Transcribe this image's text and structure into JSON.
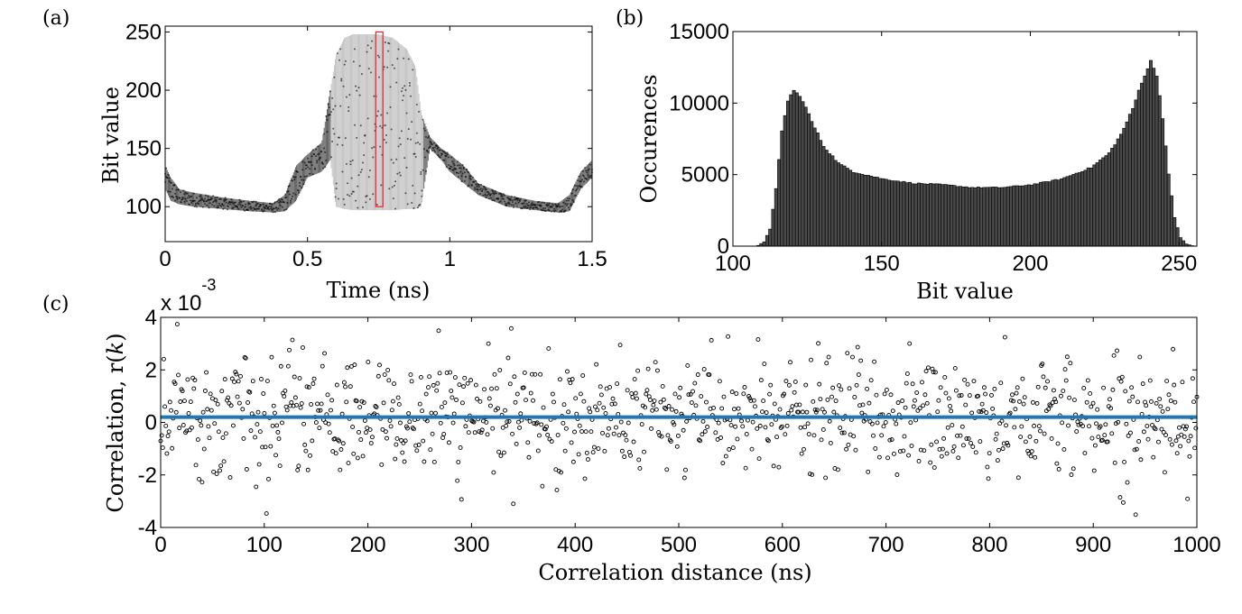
{
  "chart_data": [
    {
      "id": "a",
      "type": "scatter",
      "panel_label": "(a)",
      "xlabel": "Time (ns)",
      "ylabel": "Bit value",
      "xlim": [
        0,
        1.5
      ],
      "ylim": [
        70,
        255
      ],
      "xticks": [
        0,
        0.5,
        1,
        1.5
      ],
      "xtick_labels": [
        "0",
        "0.5",
        "1",
        "1.5"
      ],
      "yticks": [
        100,
        150,
        200,
        250
      ],
      "ytick_labels": [
        "100",
        "150",
        "200",
        "250"
      ],
      "envelope": {
        "time": [
          0,
          0.02,
          0.05,
          0.1,
          0.2,
          0.3,
          0.38,
          0.42,
          0.46,
          0.5,
          0.55,
          0.58,
          0.6,
          0.63,
          0.66,
          0.7,
          0.75,
          0.8,
          0.85,
          0.88,
          0.9,
          0.93,
          0.97,
          1.0,
          1.05,
          1.1,
          1.2,
          1.3,
          1.38,
          1.42,
          1.46,
          1.5
        ],
        "min": [
          115,
          105,
          102,
          100,
          98,
          96,
          95,
          96,
          105,
          125,
          130,
          140,
          100,
          98,
          97,
          97,
          97,
          97,
          98,
          98,
          100,
          150,
          140,
          130,
          120,
          110,
          100,
          97,
          95,
          96,
          115,
          125
        ],
        "max": [
          135,
          125,
          115,
          112,
          108,
          105,
          103,
          110,
          135,
          145,
          155,
          200,
          230,
          245,
          248,
          248,
          248,
          245,
          235,
          220,
          180,
          160,
          150,
          145,
          135,
          120,
          110,
          105,
          103,
          110,
          130,
          140
        ]
      },
      "highlight": {
        "x_range": [
          0.74,
          0.765
        ],
        "y_range": [
          100,
          250
        ],
        "color": "#e8262a"
      },
      "point_color": "#000000"
    },
    {
      "id": "b",
      "type": "bar",
      "panel_label": "(b)",
      "xlabel": "Bit value",
      "ylabel": "Occurences",
      "xlim": [
        100,
        256
      ],
      "ylim": [
        0,
        15000
      ],
      "xticks": [
        100,
        150,
        200,
        250
      ],
      "xtick_labels": [
        "100",
        "150",
        "200",
        "250"
      ],
      "yticks": [
        0,
        5000,
        10000,
        15000
      ],
      "ytick_labels": [
        "0",
        "5000",
        "10000",
        "15000"
      ],
      "bin_start": 108,
      "bin_width": 1,
      "shape_points": [
        [
          108,
          50
        ],
        [
          110,
          300
        ],
        [
          112,
          1200
        ],
        [
          114,
          4000
        ],
        [
          116,
          8000
        ],
        [
          118,
          10200
        ],
        [
          120,
          10900
        ],
        [
          123,
          10200
        ],
        [
          126,
          8700
        ],
        [
          130,
          7000
        ],
        [
          135,
          5800
        ],
        [
          140,
          5200
        ],
        [
          150,
          4700
        ],
        [
          160,
          4400
        ],
        [
          170,
          4300
        ],
        [
          180,
          4100
        ],
        [
          190,
          4100
        ],
        [
          200,
          4300
        ],
        [
          210,
          4700
        ],
        [
          220,
          5500
        ],
        [
          226,
          6500
        ],
        [
          230,
          7800
        ],
        [
          234,
          9600
        ],
        [
          237,
          11500
        ],
        [
          240,
          12900
        ],
        [
          242,
          12000
        ],
        [
          244,
          9000
        ],
        [
          246,
          5000
        ],
        [
          248,
          2000
        ],
        [
          250,
          600
        ],
        [
          252,
          150
        ],
        [
          254,
          30
        ]
      ],
      "bar_color": "#4a4a4a",
      "edge_color": "#000000"
    },
    {
      "id": "c",
      "type": "scatter",
      "panel_label": "(c)",
      "xlabel": "Correlation distance (ns)",
      "ylabel_prefix": "Correlation, r(",
      "ylabel_var": "k",
      "ylabel_suffix": ")",
      "exponent_prefix": "x 10",
      "exponent_power": "-3",
      "xlim": [
        0,
        1000
      ],
      "ylim": [
        -4,
        4
      ],
      "xticks": [
        0,
        100,
        200,
        300,
        400,
        500,
        600,
        700,
        800,
        900,
        1000
      ],
      "xtick_labels": [
        "0",
        "100",
        "200",
        "300",
        "400",
        "500",
        "600",
        "700",
        "800",
        "900",
        "1000"
      ],
      "yticks": [
        -4,
        -2,
        0,
        2,
        4
      ],
      "ytick_labels": [
        "-4",
        "-2",
        "0",
        "2",
        "4"
      ],
      "n_points": 1000,
      "mean": 0.2,
      "std": 1.1,
      "mean_line": {
        "value": 0.2,
        "color": "#1f77b4"
      },
      "point_color": "#000000"
    }
  ]
}
